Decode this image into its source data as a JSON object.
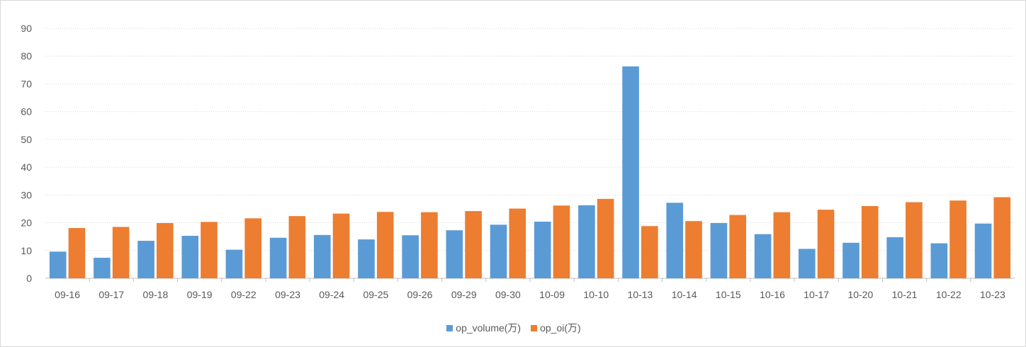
{
  "chart_data": {
    "type": "bar",
    "categories": [
      "09-16",
      "09-17",
      "09-18",
      "09-19",
      "09-22",
      "09-23",
      "09-24",
      "09-25",
      "09-26",
      "09-29",
      "09-30",
      "10-09",
      "10-10",
      "10-13",
      "10-14",
      "10-15",
      "10-16",
      "10-17",
      "10-20",
      "10-21",
      "10-22",
      "10-23"
    ],
    "series": [
      {
        "name": "op_volume(万)",
        "color": "#5b9bd5",
        "values": [
          9.6,
          7.4,
          13.5,
          15.3,
          10.3,
          14.6,
          15.6,
          14.0,
          15.5,
          17.3,
          19.3,
          20.4,
          26.3,
          76.3,
          27.2,
          19.9,
          15.9,
          10.6,
          12.8,
          14.8,
          12.6,
          19.7
        ]
      },
      {
        "name": "op_oi(万)",
        "color": "#ed7d31",
        "values": [
          18.1,
          18.5,
          19.9,
          20.3,
          21.6,
          22.4,
          23.3,
          23.9,
          23.8,
          24.2,
          25.1,
          26.2,
          28.6,
          18.8,
          20.6,
          22.8,
          23.8,
          24.7,
          26.0,
          27.4,
          28.0,
          29.2
        ]
      }
    ],
    "ylim": [
      0,
      90
    ],
    "yticks": [
      0,
      10,
      20,
      30,
      40,
      50,
      60,
      70,
      80,
      90
    ],
    "grid": true,
    "legend_position": "bottom"
  }
}
